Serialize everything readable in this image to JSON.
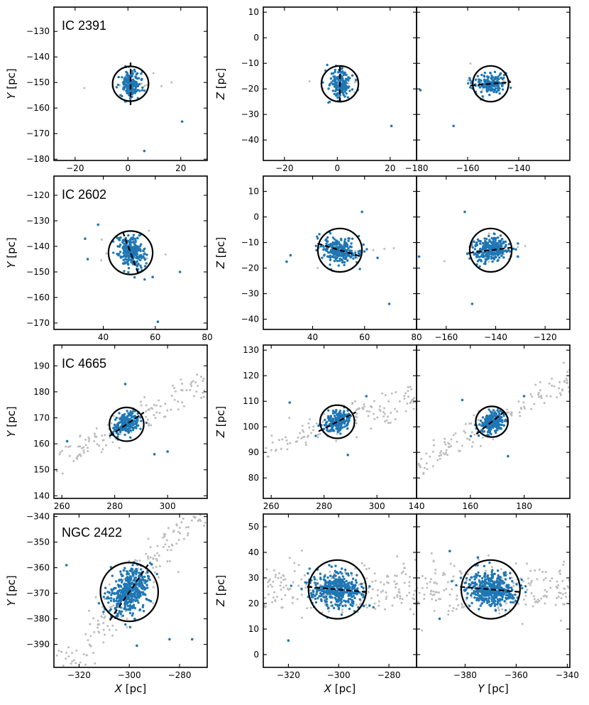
{
  "figure": {
    "axis_unit": "[pc]"
  },
  "chart_data": [
    {
      "type": "scatter",
      "cluster": "IC 2391",
      "colors": {
        "member": "#1f77b4",
        "field": "#bdbdbd",
        "circle": "#000000"
      },
      "xy": {
        "xlabel": "",
        "ylabel": "Y",
        "xlim": [
          -28,
          30
        ],
        "ylim": [
          -180.5,
          -120.5
        ],
        "xticks": [
          -20,
          0,
          20
        ],
        "yticks": [
          -180,
          -170,
          -160,
          -150,
          -140,
          -130
        ],
        "center": [
          1,
          -150.5
        ],
        "radius": 6.8,
        "axis_angle_deg": 90,
        "axis_len": 8.3,
        "outliers": [
          [
            20.5,
            -165.3
          ],
          [
            6.2,
            -176.8
          ]
        ]
      },
      "xz": {
        "xlabel": "",
        "ylabel": "Z",
        "xlim": [
          -28,
          30
        ],
        "ylim": [
          -48,
          12
        ],
        "xticks": [
          -20,
          0,
          20
        ],
        "yticks": [
          -40,
          -30,
          -20,
          -10,
          0,
          10
        ],
        "center": [
          1,
          -18
        ],
        "radius": 7,
        "axis_angle_deg": 90,
        "axis_len": 7.3,
        "outliers": [
          [
            20.5,
            -34.5
          ]
        ]
      },
      "yz": {
        "xlabel": "",
        "xlim": [
          -180,
          -120
        ],
        "ylim": [
          -48,
          12
        ],
        "xticks": [
          -180,
          -160,
          -140
        ],
        "center": [
          -151,
          -18
        ],
        "radius": 7,
        "axis_angle_deg": 5,
        "axis_len": 8,
        "outliers": [
          [
            -178.5,
            -20.5
          ],
          [
            -165.5,
            -34.5
          ]
        ]
      },
      "n_members": 170,
      "n_field": 10
    },
    {
      "type": "scatter",
      "cluster": "IC 2602",
      "colors": {
        "member": "#1f77b4",
        "field": "#bdbdbd",
        "circle": "#000000"
      },
      "xy": {
        "xlabel": "",
        "ylabel": "Y",
        "xlim": [
          21,
          80
        ],
        "ylim": [
          -172.5,
          -112.5
        ],
        "xticks": [
          40,
          60,
          80
        ],
        "yticks": [
          -170,
          -160,
          -150,
          -140,
          -130,
          -120
        ],
        "center": [
          50.5,
          -142.5
        ],
        "radius": 8.5,
        "axis_angle_deg": -70,
        "axis_len": 8.8,
        "outliers": [
          [
            61,
            -169.5
          ],
          [
            69.5,
            -150
          ],
          [
            38,
            -131.5
          ],
          [
            33,
            -137
          ],
          [
            34,
            -145
          ],
          [
            59,
            -152
          ]
        ]
      },
      "xz": {
        "xlabel": "",
        "ylabel": "Z",
        "xlim": [
          21,
          80
        ],
        "ylim": [
          -44,
          16
        ],
        "xticks": [
          40,
          60,
          80
        ],
        "yticks": [
          -40,
          -30,
          -20,
          -10,
          0,
          10
        ],
        "center": [
          50.5,
          -13
        ],
        "radius": 8.5,
        "axis_angle_deg": -17,
        "axis_len": 9,
        "outliers": [
          [
            59,
            2
          ],
          [
            69.5,
            -34
          ],
          [
            30,
            -17.5
          ],
          [
            31.5,
            -15
          ],
          [
            65,
            -16
          ]
        ]
      },
      "yz": {
        "xlabel": "",
        "xlim": [
          -172,
          -110
        ],
        "ylim": [
          -44,
          16
        ],
        "xticks": [
          -160,
          -140,
          -120
        ],
        "center": [
          -142,
          -13
        ],
        "radius": 8.5,
        "axis_angle_deg": 7,
        "axis_len": 9,
        "outliers": [
          [
            -152.5,
            2
          ],
          [
            -149.5,
            -34
          ],
          [
            -171,
            -15.5
          ],
          [
            -131,
            -15.5
          ]
        ]
      },
      "n_members": 260,
      "n_field": 12
    },
    {
      "type": "scatter",
      "cluster": "IC 4665",
      "colors": {
        "member": "#1f77b4",
        "field": "#bdbdbd",
        "circle": "#000000"
      },
      "xy": {
        "xlabel": "",
        "ylabel": "Y",
        "xlim": [
          257,
          315
        ],
        "ylim": [
          139,
          198
        ],
        "xticks": [
          260,
          280,
          300
        ],
        "yticks": [
          140,
          150,
          160,
          170,
          180,
          190
        ],
        "center": [
          284.5,
          167.5
        ],
        "radius": 6.5,
        "axis_angle_deg": 35,
        "axis_len": 8,
        "outliers": [
          [
            284,
            183
          ],
          [
            295,
            156
          ],
          [
            300,
            157
          ],
          [
            262,
            161
          ]
        ]
      },
      "xz": {
        "xlabel": "",
        "ylabel": "Z",
        "xlim": [
          257,
          315
        ],
        "ylim": [
          72,
          132
        ],
        "xticks": [
          260,
          280,
          300
        ],
        "yticks": [
          80,
          90,
          100,
          110,
          120,
          130
        ],
        "center": [
          285,
          102
        ],
        "radius": 6.5,
        "axis_angle_deg": 28,
        "axis_len": 8,
        "outliers": [
          [
            267,
            109.5
          ],
          [
            296,
            112
          ],
          [
            289,
            89
          ]
        ]
      },
      "yz": {
        "xlabel": "",
        "xlim": [
          140,
          197
        ],
        "ylim": [
          72,
          132
        ],
        "xticks": [
          140,
          160,
          180
        ],
        "center": [
          168,
          102
        ],
        "radius": 6,
        "axis_angle_deg": 40,
        "axis_len": 7.5,
        "outliers": [
          [
            157,
            110.5
          ],
          [
            174,
            88.5
          ],
          [
            180,
            112
          ]
        ]
      },
      "field_trend": {
        "slope_xy": 0.55,
        "slope_xz": 0.35,
        "slope_yz": 0.6
      },
      "n_members": 220,
      "n_field": 140
    },
    {
      "type": "scatter",
      "cluster": "NGC 2422",
      "colors": {
        "member": "#1f77b4",
        "field": "#bdbdbd",
        "circle": "#000000"
      },
      "xy": {
        "xlabel": "X",
        "ylabel": "Y",
        "xlim": [
          -330,
          -269
        ],
        "ylim": [
          -399,
          -339
        ],
        "xticks": [
          -320,
          -300,
          -280
        ],
        "yticks": [
          -390,
          -380,
          -370,
          -360,
          -350,
          -340
        ],
        "center": [
          -300,
          -369.5
        ],
        "radius": 11.5,
        "axis_angle_deg": 55,
        "axis_len": 13.5,
        "outliers": [
          [
            -275,
            -388
          ],
          [
            -284,
            -388
          ],
          [
            -297,
            -390.5
          ],
          [
            -325,
            -359
          ]
        ]
      },
      "xz": {
        "xlabel": "X",
        "ylabel": "Z",
        "xlim": [
          -330,
          -269
        ],
        "ylim": [
          -5,
          55
        ],
        "xticks": [
          -320,
          -300,
          -280
        ],
        "yticks": [
          0,
          10,
          20,
          30,
          40,
          50
        ],
        "center": [
          -300.5,
          25.5
        ],
        "radius": 11.5,
        "axis_angle_deg": -5,
        "axis_len": 12,
        "outliers": [
          [
            -320,
            5.5
          ],
          [
            -290,
            19
          ],
          [
            -300,
            55
          ]
        ]
      },
      "yz": {
        "xlabel": "Y",
        "xlim": [
          -399,
          -339
        ],
        "ylim": [
          -5,
          55
        ],
        "xticks": [
          -380,
          -360,
          -340
        ],
        "center": [
          -370,
          25.5
        ],
        "radius": 11.5,
        "axis_angle_deg": -5,
        "axis_len": 12,
        "outliers": [
          [
            -390,
            14
          ],
          [
            -375,
            38
          ],
          [
            -386,
            40.5
          ]
        ]
      },
      "field_trend": {
        "slope_xy": 1.2,
        "slope_xz": 0.0,
        "slope_yz": 0.0
      },
      "n_members": 420,
      "n_field": 230
    }
  ]
}
